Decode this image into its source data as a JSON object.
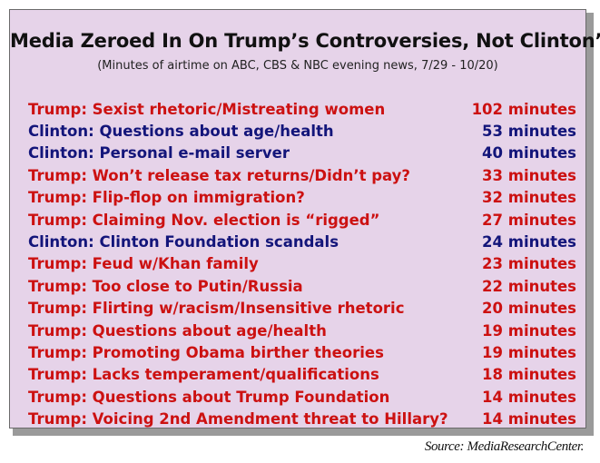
{
  "colors": {
    "trump": "#cc1111",
    "clinton": "#13157a",
    "panel_bg": "#e6d3e9"
  },
  "chart_data": {
    "type": "table",
    "title": "Media Zeroed In On Trump’s Controversies, Not Clinton’s",
    "subtitle": "(Minutes of airtime on ABC, CBS & NBC evening news, 7/29 - 10/20)",
    "rows": [
      {
        "party": "trump",
        "label": "Trump: Sexist rhetoric/Mistreating women",
        "value": 102,
        "value_text": "102 minutes"
      },
      {
        "party": "clinton",
        "label": "Clinton: Questions about age/health",
        "value": 53,
        "value_text": "53 minutes"
      },
      {
        "party": "clinton",
        "label": "Clinton: Personal e-mail server",
        "value": 40,
        "value_text": "40 minutes"
      },
      {
        "party": "trump",
        "label": "Trump: Won’t release tax returns/Didn’t pay?",
        "value": 33,
        "value_text": "33 minutes"
      },
      {
        "party": "trump",
        "label": "Trump: Flip-flop on immigration?",
        "value": 32,
        "value_text": "32 minutes"
      },
      {
        "party": "trump",
        "label": "Trump: Claiming Nov. election is “rigged”",
        "value": 27,
        "value_text": "27 minutes"
      },
      {
        "party": "clinton",
        "label": "Clinton: Clinton Foundation scandals",
        "value": 24,
        "value_text": "24 minutes"
      },
      {
        "party": "trump",
        "label": "Trump: Feud w/Khan family",
        "value": 23,
        "value_text": "23 minutes"
      },
      {
        "party": "trump",
        "label": "Trump: Too close to Putin/Russia",
        "value": 22,
        "value_text": "22 minutes"
      },
      {
        "party": "trump",
        "label": "Trump: Flirting w/racism/Insensitive rhetoric",
        "value": 20,
        "value_text": "20 minutes"
      },
      {
        "party": "trump",
        "label": "Trump: Questions about age/health",
        "value": 19,
        "value_text": "19 minutes"
      },
      {
        "party": "trump",
        "label": "Trump: Promoting Obama birther theories",
        "value": 19,
        "value_text": "19 minutes"
      },
      {
        "party": "trump",
        "label": "Trump: Lacks temperament/qualifications",
        "value": 18,
        "value_text": "18 minutes"
      },
      {
        "party": "trump",
        "label": "Trump: Questions about Trump Foundation",
        "value": 14,
        "value_text": "14 minutes"
      },
      {
        "party": "trump",
        "label": "Trump: Voicing 2nd Amendment threat to Hillary?",
        "value": 14,
        "value_text": "14 minutes"
      }
    ],
    "source": "Source: MediaResearchCenter."
  }
}
